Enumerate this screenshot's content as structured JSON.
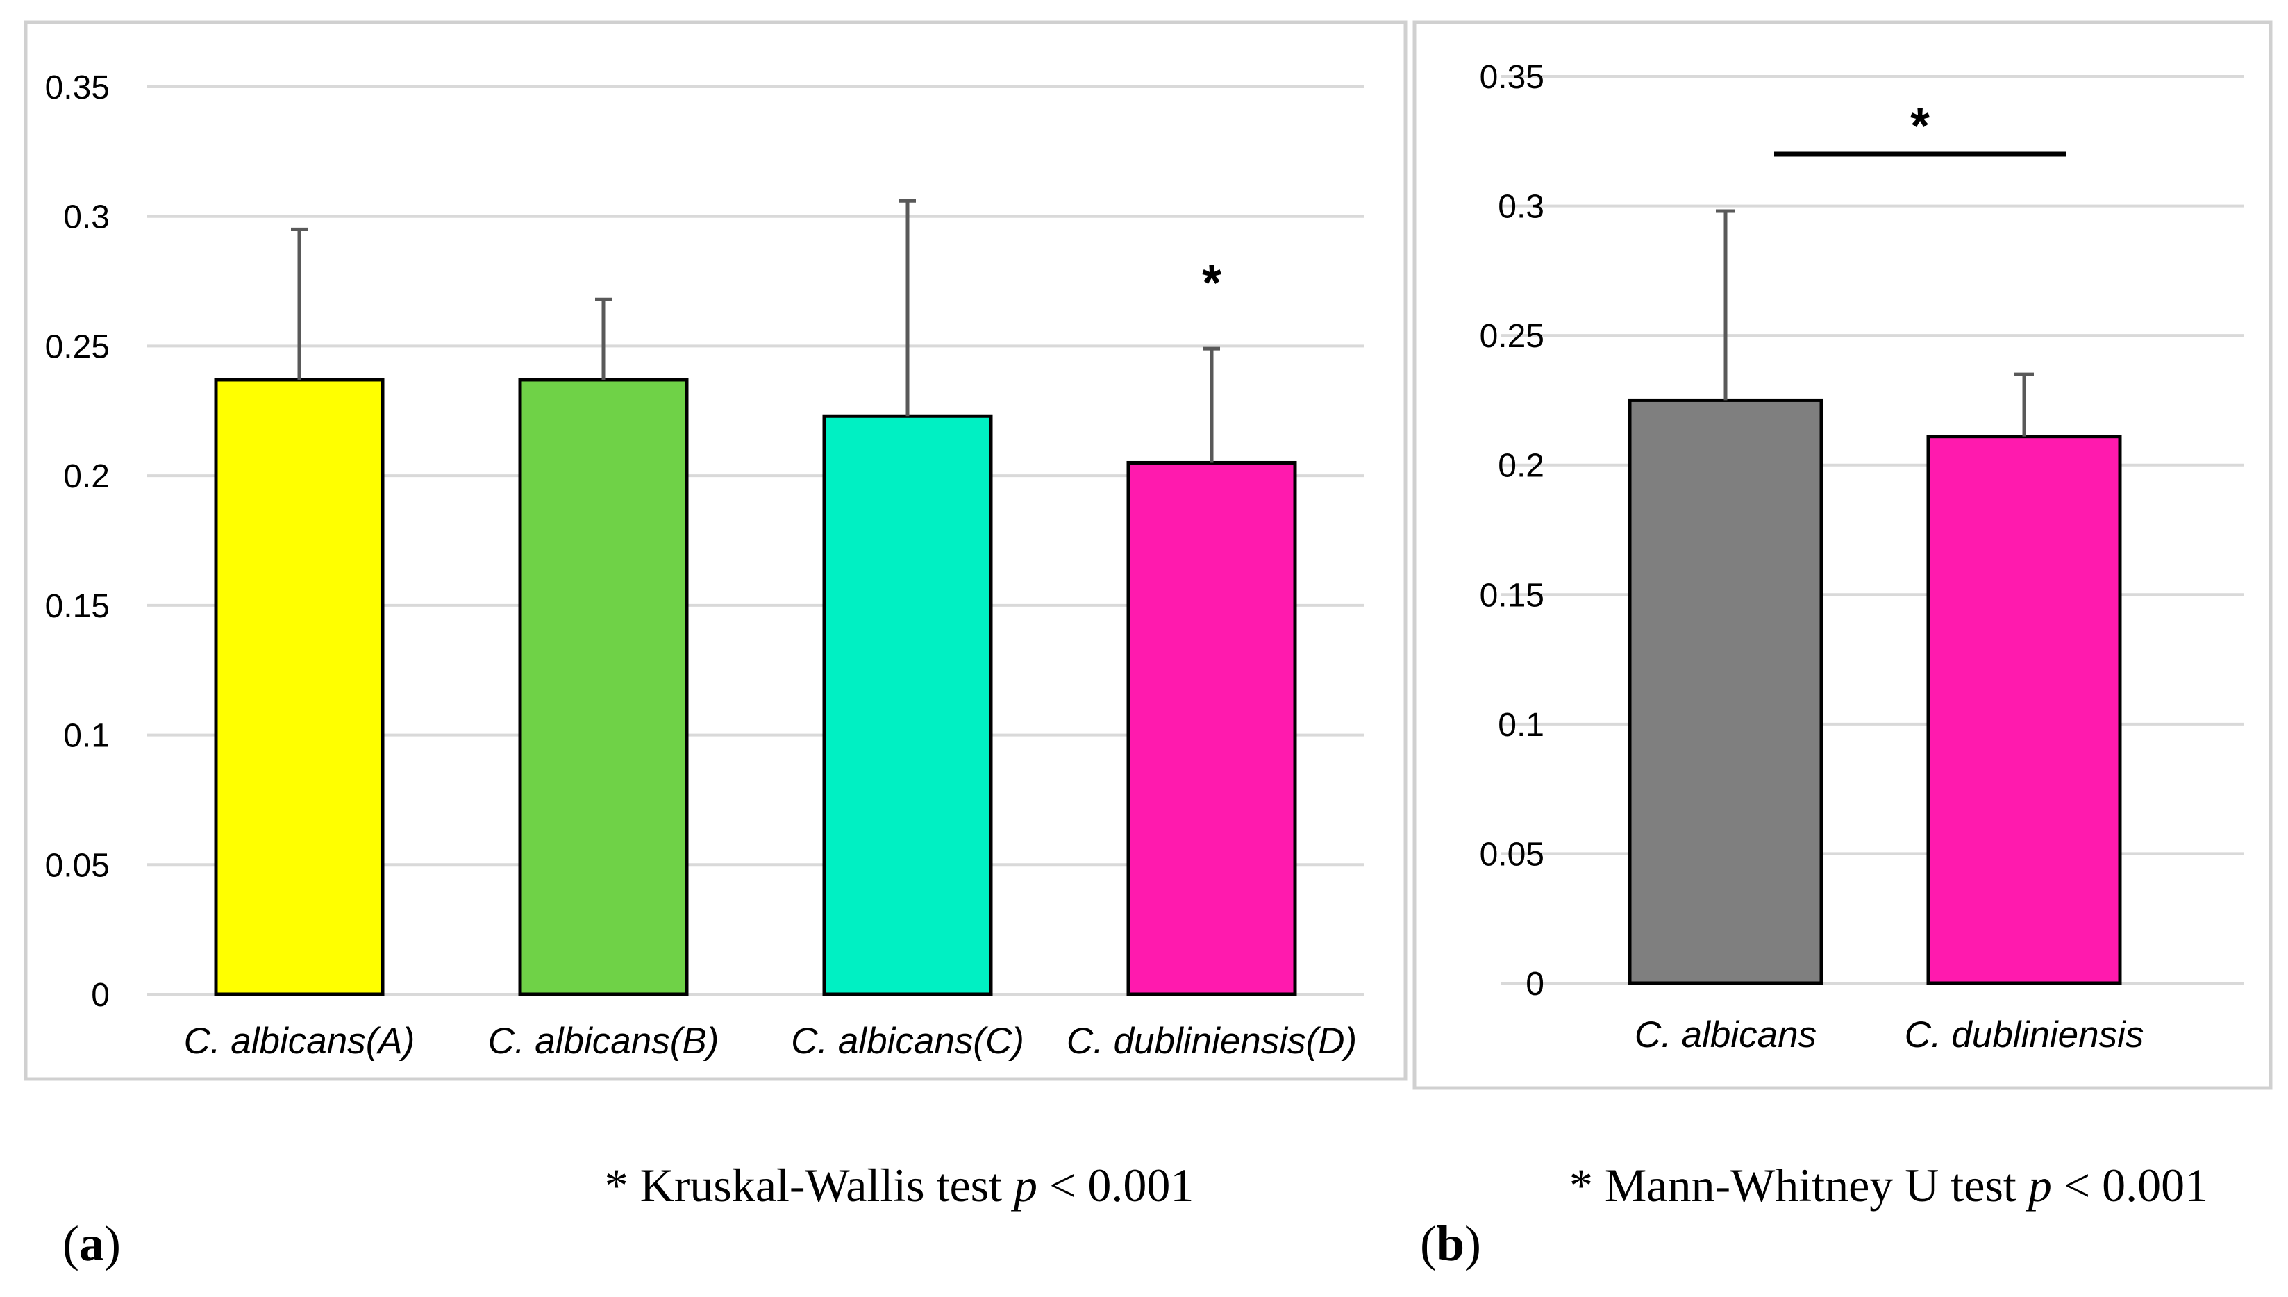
{
  "chart_data": [
    {
      "type": "bar",
      "panel": "a",
      "categories": [
        "C. albicans(A)",
        "C. albicans(B)",
        "C. albicans(C)",
        "C. dubliniensis(D)"
      ],
      "values": [
        0.237,
        0.237,
        0.223,
        0.205
      ],
      "error_upper": [
        0.295,
        0.268,
        0.306,
        0.249
      ],
      "colors": [
        "#ffff00",
        "#6fd247",
        "#00f0c3",
        "#ff1aae"
      ],
      "yticks": [
        "0",
        "0.05",
        "0.1",
        "0.15",
        "0.2",
        "0.25",
        "0.3",
        "0.35"
      ],
      "ylim": [
        0,
        0.35
      ],
      "annotation": "*",
      "annotation_category": "C. dubliniensis(D)",
      "note": {
        "prefix": "* Kruskal-Wallis test ",
        "p": "p",
        "suffix": " < 0.001"
      },
      "panel_label": {
        "open": "(",
        "letter": "a",
        "close": ")"
      }
    },
    {
      "type": "bar",
      "panel": "b",
      "categories": [
        "C. albicans",
        "C. dubliniensis"
      ],
      "values": [
        0.225,
        0.211
      ],
      "error_upper": [
        0.298,
        0.235
      ],
      "colors": [
        "#7f7f7f",
        "#ff1aae"
      ],
      "yticks": [
        "0",
        "0.05",
        "0.1",
        "0.15",
        "0.2",
        "0.25",
        "0.3",
        "0.35"
      ],
      "ylim": [
        0,
        0.35
      ],
      "annotation": "*",
      "annotation_bracket_level": 0.32,
      "note": {
        "prefix": "* Mann-Whitney U test ",
        "p": "p",
        "suffix": " < 0.001"
      },
      "panel_label": {
        "open": "(",
        "letter": "b",
        "close": ")"
      }
    }
  ]
}
